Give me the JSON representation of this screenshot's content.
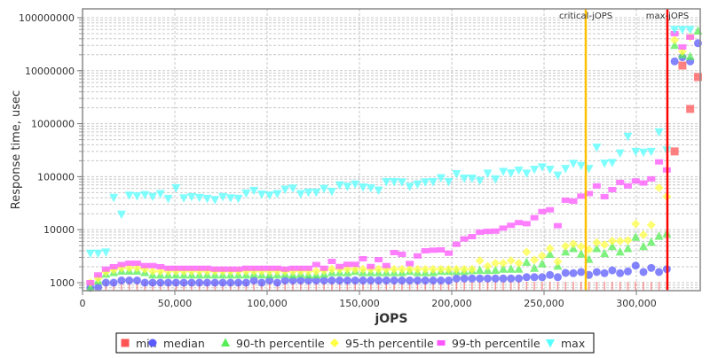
{
  "chart_data": {
    "type": "scatter",
    "title": "",
    "xlabel": "jOPS",
    "ylabel": "Response time, usec",
    "xlim": [
      0,
      334600
    ],
    "ylim": [
      680,
      140000000
    ],
    "yscale": "log",
    "grid": true,
    "legend_position": "bottom",
    "x_ticks": [
      "0",
      "50,000",
      "100,000",
      "150,000",
      "200,000",
      "250,000",
      "300,000"
    ],
    "x_tick_values": [
      0,
      50000,
      100000,
      150000,
      200000,
      250000,
      300000
    ],
    "y_ticks": [
      "1000",
      "10000",
      "100000",
      "1000000",
      "10000000",
      "100000000"
    ],
    "y_tick_values": [
      1000,
      10000,
      100000,
      1000000,
      10000000,
      100000000
    ],
    "x_step": 4220,
    "annotations": [
      {
        "label": "critical-jOPS",
        "x": 272600,
        "color": "#ffc000"
      },
      {
        "label": "max-jOPS",
        "x": 316800,
        "color": "#ff0000"
      }
    ],
    "series": [
      {
        "name": "min",
        "color": "#ff5555",
        "marker": "square",
        "note_zero_means_below_axis": true,
        "values": [
          null,
          null,
          0,
          0,
          0,
          0,
          0,
          0,
          0,
          0,
          0,
          0,
          0,
          0,
          0,
          0,
          0,
          0,
          0,
          0,
          0,
          0,
          0,
          0,
          0,
          0,
          0,
          0,
          0,
          0,
          0,
          0,
          0,
          0,
          0,
          0,
          0,
          0,
          0,
          0,
          0,
          0,
          0,
          0,
          0,
          0,
          0,
          0,
          0,
          0,
          0,
          0,
          0,
          0,
          0,
          0,
          0,
          0,
          0,
          0,
          0,
          0,
          0,
          0,
          0,
          0,
          0,
          0,
          0,
          0,
          0,
          0,
          0,
          0,
          0,
          300000,
          12500000,
          1900000,
          7600000
        ]
      },
      {
        "name": "median",
        "color": "#5b5bff",
        "marker": "circle",
        "values": [
          800,
          815,
          1000,
          1000,
          1100,
          1100,
          1100,
          1000,
          1000,
          1000,
          1000,
          1000,
          1000,
          1000,
          1000,
          1000,
          1000,
          1000,
          1000,
          1000,
          1000,
          1100,
          1000,
          1100,
          1000,
          1100,
          1100,
          1100,
          1100,
          1100,
          1100,
          1100,
          1100,
          1100,
          1100,
          1100,
          1100,
          1100,
          1100,
          1100,
          1100,
          1100,
          1100,
          1100,
          1100,
          1100,
          1100,
          1200,
          1200,
          1200,
          1200,
          1200,
          1200,
          1200,
          1200,
          1200,
          1270,
          1270,
          1270,
          1400,
          1270,
          1530,
          1510,
          1590,
          1400,
          1590,
          1510,
          1710,
          1510,
          1630,
          2100,
          1590,
          1900,
          1590,
          1800,
          15000000,
          18000000,
          15000000,
          33000000
        ]
      },
      {
        "name": "90-th percentile",
        "color": "#55ee55",
        "marker": "triangle-up",
        "values": [
          800,
          1080,
          1450,
          1550,
          1650,
          1650,
          1650,
          1550,
          1400,
          1400,
          1400,
          1400,
          1400,
          1400,
          1400,
          1400,
          1400,
          1400,
          1400,
          1400,
          1400,
          1450,
          1400,
          1400,
          1400,
          1450,
          1400,
          1450,
          1400,
          1400,
          1450,
          1550,
          1550,
          1550,
          1630,
          1550,
          1550,
          1550,
          1550,
          1550,
          1550,
          1630,
          1550,
          1550,
          1550,
          1630,
          1630,
          1630,
          1630,
          1690,
          1710,
          1710,
          1710,
          1800,
          1800,
          1800,
          2420,
          1870,
          2270,
          3430,
          2050,
          3800,
          4400,
          3470,
          2750,
          4400,
          3550,
          4800,
          3800,
          4400,
          7200,
          4800,
          5800,
          7500,
          8400,
          30000000,
          20000000,
          18500000,
          56000000
        ]
      },
      {
        "name": "95-th percentile",
        "color": "#ffff44",
        "marker": "diamond",
        "values": [
          1000,
          1200,
          1600,
          1750,
          1900,
          1900,
          1900,
          1800,
          1650,
          1650,
          1650,
          1650,
          1650,
          1650,
          1650,
          1650,
          1650,
          1650,
          1650,
          1650,
          1650,
          1650,
          1650,
          1650,
          1650,
          1650,
          1650,
          1650,
          1650,
          1650,
          1700,
          1800,
          1800,
          1800,
          1800,
          1800,
          1800,
          1800,
          1800,
          1800,
          1800,
          1800,
          1800,
          1800,
          1800,
          1800,
          1800,
          1800,
          1800,
          1800,
          2600,
          2050,
          2330,
          2330,
          2600,
          2330,
          3800,
          2700,
          3200,
          4400,
          2500,
          4900,
          5400,
          4800,
          4200,
          5700,
          5200,
          6100,
          6100,
          6300,
          12900,
          8000,
          12300,
          62000,
          42000,
          38000000,
          23000000,
          43000000,
          null
        ]
      },
      {
        "name": "99-th percentile",
        "color": "#ff55ff",
        "marker": "rect",
        "values": [
          1000,
          1400,
          1800,
          2000,
          2200,
          2330,
          2330,
          2100,
          2100,
          2000,
          1870,
          1870,
          1870,
          1870,
          1870,
          1870,
          1800,
          1800,
          1800,
          1800,
          1870,
          1870,
          1870,
          1870,
          1870,
          1800,
          1870,
          1870,
          1870,
          2200,
          1870,
          2520,
          2020,
          2220,
          2220,
          2830,
          2020,
          2720,
          2100,
          3700,
          3430,
          2300,
          3200,
          4000,
          4100,
          4150,
          3600,
          5300,
          6700,
          7400,
          9000,
          9300,
          9400,
          10700,
          12100,
          13600,
          13000,
          16800,
          22000,
          23700,
          11900,
          36000,
          34600,
          43000,
          48000,
          67000,
          42000,
          57000,
          78000,
          67000,
          83000,
          76000,
          91000,
          190000,
          134000,
          50000000,
          28000000,
          43000000,
          null
        ]
      },
      {
        "name": "max",
        "color": "#55ffff",
        "marker": "triangle-down",
        "values": [
          3600,
          3600,
          3800,
          40700,
          19600,
          44700,
          43600,
          46000,
          42400,
          48000,
          39000,
          62000,
          40000,
          42000,
          40700,
          39000,
          37000,
          42000,
          40000,
          39000,
          49000,
          55000,
          47000,
          45000,
          48000,
          58000,
          61000,
          48000,
          51000,
          51000,
          60000,
          53000,
          70000,
          66000,
          73000,
          64000,
          62000,
          56000,
          81000,
          81000,
          80000,
          66000,
          73000,
          80000,
          81000,
          96000,
          81000,
          114000,
          94000,
          94000,
          85000,
          117000,
          91000,
          126000,
          118000,
          133000,
          117000,
          138000,
          153000,
          138000,
          107000,
          143000,
          178000,
          163000,
          143000,
          360000,
          180000,
          185000,
          280000,
          580000,
          300000,
          290000,
          300000,
          700000,
          320000,
          60000000,
          60000000,
          60000000,
          null
        ]
      }
    ]
  }
}
